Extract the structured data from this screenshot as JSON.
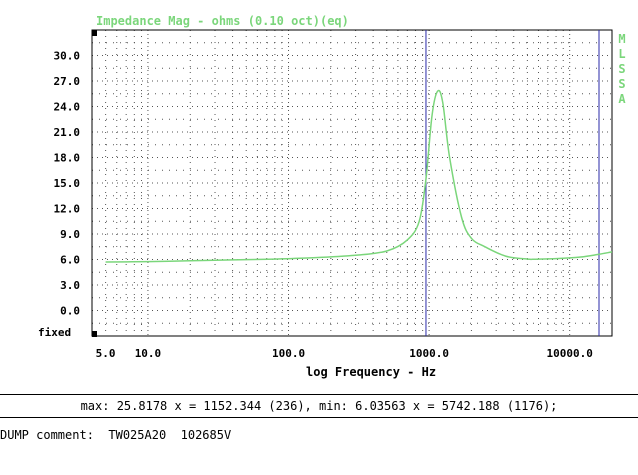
{
  "chart_data": {
    "type": "line",
    "title": "Impedance Mag - ohms (0.10 oct)(eq)",
    "side_label": [
      "M",
      "L",
      "S",
      "S",
      "A"
    ],
    "xlabel": "log Frequency - Hz",
    "ylabel": "",
    "x_scale": "log",
    "xlim": [
      4,
      20000
    ],
    "ylim": [
      -3,
      33
    ],
    "y_ticks": [
      30.0,
      27.0,
      24.0,
      21.0,
      18.0,
      15.0,
      12.0,
      9.0,
      6.0,
      3.0,
      0.0
    ],
    "y_tick_labels": [
      "30.0",
      "27.0",
      "24.0",
      "21.0",
      "18.0",
      "15.0",
      "12.0",
      "9.0",
      "6.0",
      "3.0",
      "0.0"
    ],
    "y_bottom_label": "fixed",
    "x_ticks": [
      5,
      10,
      100,
      1000,
      10000
    ],
    "x_tick_labels": [
      "5.0",
      "10.0",
      "100.0",
      "1000.0",
      "10000.0"
    ],
    "grid": true,
    "cursor_x": 950,
    "series_color": "#7bd67b",
    "series": [
      {
        "x": [
          5,
          10,
          20,
          40,
          80,
          150,
          300,
          500,
          700,
          850,
          950,
          1050,
          1150,
          1250,
          1400,
          1700,
          2000,
          2500,
          3500,
          5000,
          5742,
          8000,
          12000,
          16000,
          20000
        ],
        "values": [
          5.7,
          5.75,
          5.85,
          5.95,
          6.05,
          6.2,
          6.5,
          7.0,
          8.3,
          10.5,
          15.5,
          23.0,
          25.8,
          24.5,
          18.0,
          11.0,
          8.5,
          7.5,
          6.4,
          6.05,
          6.04,
          6.1,
          6.3,
          6.6,
          6.9
        ]
      }
    ]
  },
  "readout": "max: 25.8178 x = 1152.344 (236), min: 6.03563 x = 5742.188 (1176);",
  "dump": {
    "label": "DUMP comment:",
    "value": "TW025A20  102685V"
  }
}
